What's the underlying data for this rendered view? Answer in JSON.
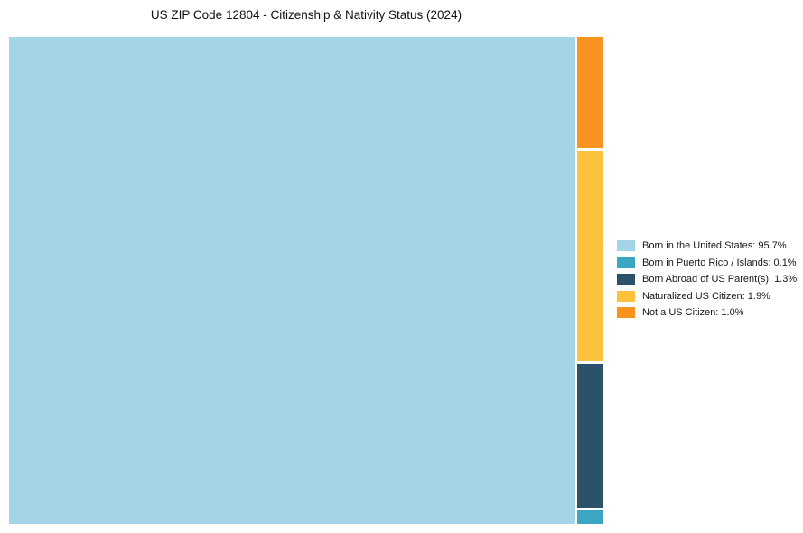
{
  "chart_data": {
    "type": "treemap",
    "title": "US ZIP Code 12804 - Citizenship & Nativity Status (2024)",
    "categories": [
      "Born in the United States",
      "Born in Puerto Rico / Islands",
      "Born Abroad of US Parent(s)",
      "Naturalized US Citizen",
      "Not a US Citizen"
    ],
    "values": [
      95.7,
      0.1,
      1.3,
      1.9,
      1.0
    ],
    "unit": "%",
    "colors": [
      "#A4D4E8",
      "#3BA6C4",
      "#2B5268",
      "#FCC23B",
      "#F7931E"
    ],
    "legend_position": "right",
    "legend_labels": [
      "Born in the United States: 95.7%",
      "Born in Puerto Rico / Islands: 0.1%",
      "Born Abroad of US Parent(s): 1.3%",
      "Naturalized US Citizen: 1.9%",
      "Not a US Citizen: 1.0%"
    ],
    "layout": {
      "main_segment": "Born in the United States",
      "side_column_order": [
        "Not a US Citizen",
        "Naturalized US Citizen",
        "Born Abroad of US Parent(s)",
        "Born in Puerto Rico / Islands"
      ]
    }
  }
}
